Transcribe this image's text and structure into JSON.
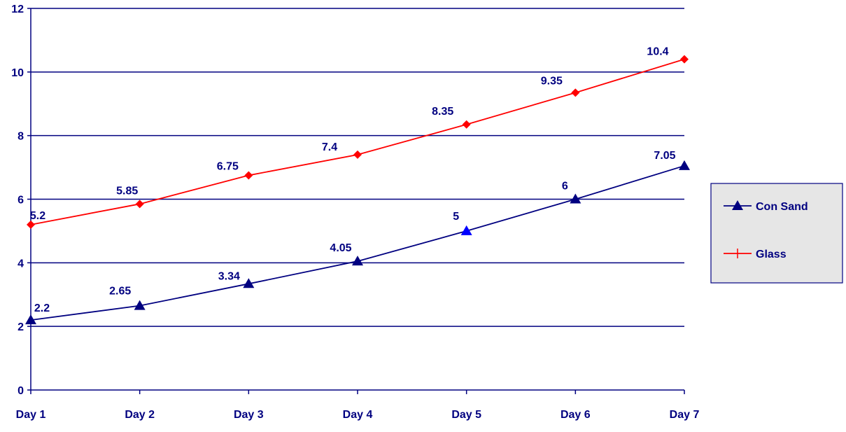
{
  "chart_data": {
    "type": "line",
    "categories": [
      "Day 1",
      "Day 2",
      "Day 3",
      "Day 4",
      "Day 5",
      "Day 6",
      "Day 7"
    ],
    "ylim": [
      0,
      12
    ],
    "yticks": [
      0,
      2,
      4,
      6,
      8,
      10,
      12
    ],
    "y_tick_labels": [
      "0",
      "2",
      "4",
      "6",
      "8",
      "10",
      "12"
    ],
    "grid": "horizontal",
    "legend_position": "right",
    "series": [
      {
        "name": "Con Sand",
        "marker": "triangle",
        "color": "#000080",
        "values": [
          2.2,
          2.65,
          3.34,
          4.05,
          5,
          6,
          7.05
        ],
        "data_labels": [
          "2.2",
          "2.65",
          "3.34",
          "4.05",
          "5",
          "6",
          "7.05"
        ]
      },
      {
        "name": "Glass",
        "marker": "diamond",
        "color": "#ff0000",
        "values": [
          5.2,
          5.85,
          6.75,
          7.4,
          8.35,
          9.35,
          10.4
        ],
        "data_labels": [
          "5.2",
          "5.85",
          "6.75",
          "7.4",
          "8.35",
          "9.35",
          "10.4"
        ]
      }
    ]
  },
  "colors": {
    "axis_text": "#000080",
    "grid": "#000080",
    "legend_background": "#e6e6e6",
    "con_sand_day5_marker": "#0000ff"
  }
}
